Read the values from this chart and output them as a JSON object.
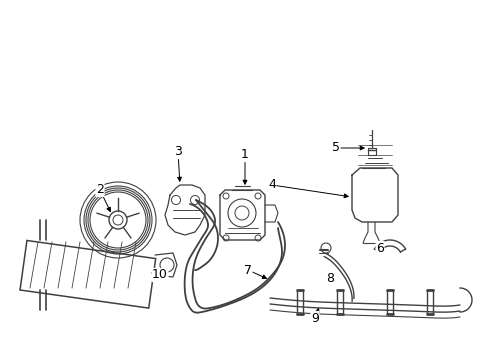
{
  "background_color": "#ffffff",
  "line_color": "#404040",
  "figsize": [
    4.89,
    3.6
  ],
  "dpi": 100,
  "xlim": [
    0,
    489
  ],
  "ylim": [
    0,
    360
  ]
}
